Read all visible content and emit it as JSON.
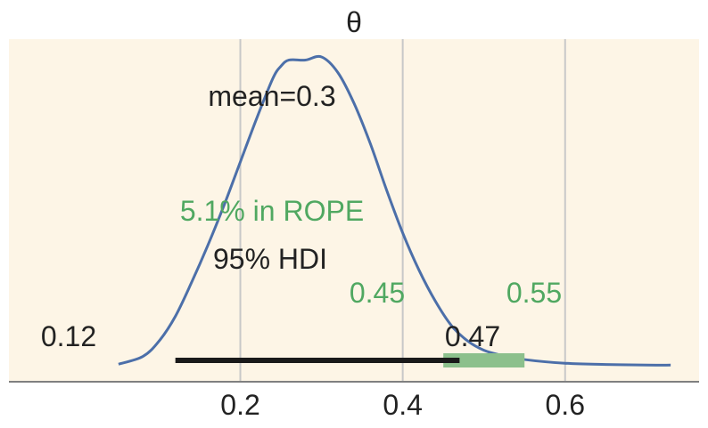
{
  "chart_data": {
    "type": "area",
    "title": "θ",
    "xlabel": "",
    "ylabel": "",
    "xlim": [
      -0.085,
      0.765
    ],
    "x_ticks": [
      0.2,
      0.4,
      0.6
    ],
    "x_tick_labels": [
      "0.2",
      "0.4",
      "0.6"
    ],
    "grid": "vertical",
    "series": [
      {
        "x": [
          0.05,
          0.08,
          0.1,
          0.12,
          0.14,
          0.16,
          0.18,
          0.2,
          0.22,
          0.24,
          0.25,
          0.26,
          0.28,
          0.3,
          0.32,
          0.34,
          0.36,
          0.38,
          0.4,
          0.42,
          0.44,
          0.46,
          0.48,
          0.5,
          0.52,
          0.55,
          0.6,
          0.65,
          0.7,
          0.73
        ],
        "y": [
          0.005,
          0.03,
          0.08,
          0.16,
          0.27,
          0.39,
          0.52,
          0.66,
          0.8,
          0.93,
          0.97,
          0.99,
          0.99,
          1.0,
          0.95,
          0.85,
          0.72,
          0.57,
          0.43,
          0.31,
          0.21,
          0.13,
          0.08,
          0.05,
          0.035,
          0.02,
          0.008,
          0.004,
          0.002,
          0.002
        ]
      }
    ],
    "hdi": {
      "label": "95% HDI",
      "low": 0.12,
      "high": 0.47,
      "low_label": "0.12",
      "high_label": "0.47"
    },
    "rope": {
      "low": 0.45,
      "high": 0.55,
      "low_label": "0.45",
      "high_label": "0.55",
      "pct_label": "5.1% in ROPE"
    },
    "mean_label": "mean=0.3",
    "colors": {
      "background": "#fdf5e6",
      "curve": "#4c6fa9",
      "hdi": "#1a1a1a",
      "rope": "#8cc08c",
      "rope_text": "#50a861",
      "grid": "#c8c8c8",
      "axis": "#808080",
      "text": "#222222"
    }
  }
}
